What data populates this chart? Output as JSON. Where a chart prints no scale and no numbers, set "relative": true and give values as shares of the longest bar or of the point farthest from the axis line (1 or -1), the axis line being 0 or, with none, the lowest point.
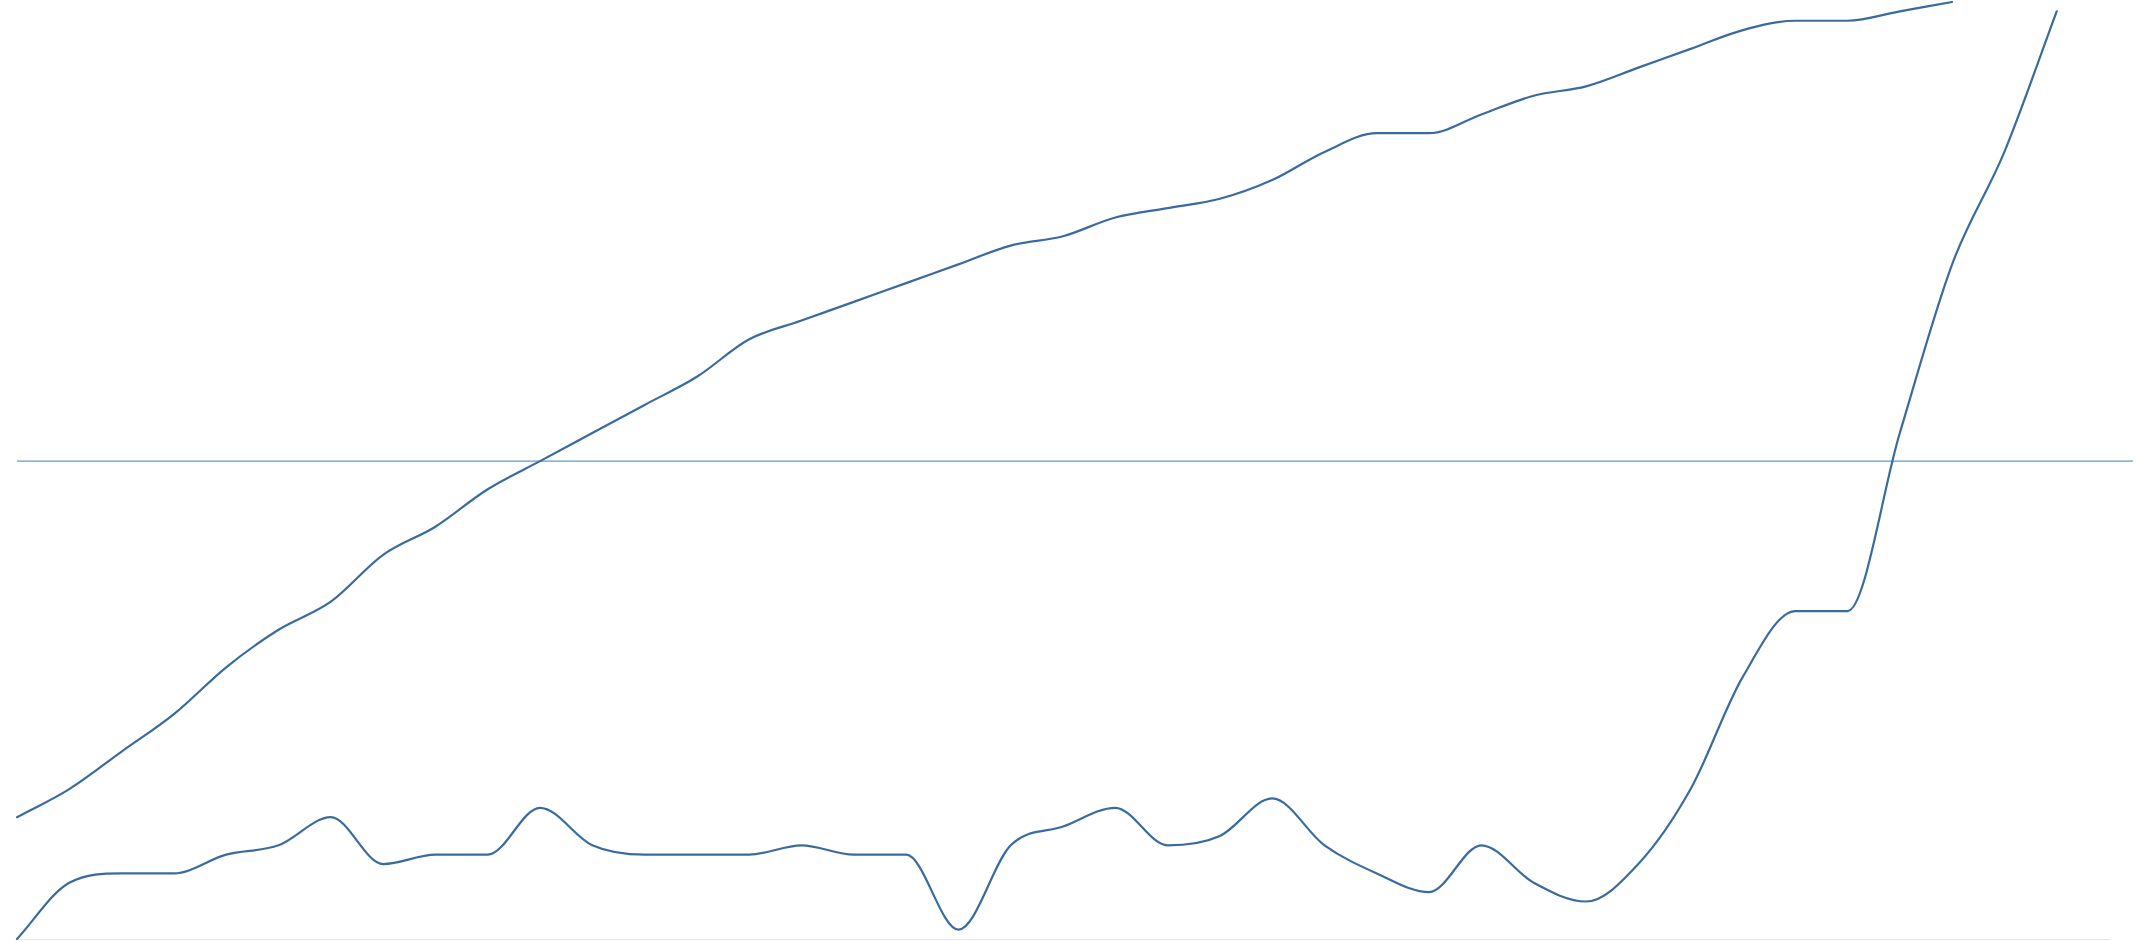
{
  "chart_data": {
    "type": "line",
    "relative": true,
    "grid": false,
    "legend": false,
    "marker": "none",
    "line_style": "solid",
    "categories": [
      null,
      null,
      null,
      null,
      null,
      null,
      null,
      null,
      null,
      null,
      null,
      null,
      null,
      null,
      null,
      null,
      null,
      null,
      null,
      null,
      null,
      null,
      null,
      null,
      null,
      null,
      null,
      null,
      null,
      null,
      null,
      null,
      null,
      null,
      null,
      null,
      null,
      null,
      null,
      null,
      null
    ],
    "series": [
      {
        "color": "#3a6b9e",
        "values": [
          0.13,
          0.16,
          0.2,
          0.24,
          0.29,
          0.33,
          0.36,
          0.41,
          0.44,
          0.48,
          0.51,
          0.54,
          0.57,
          0.6,
          0.64,
          0.66,
          0.68,
          0.7,
          0.72,
          0.74,
          0.75,
          0.77,
          0.78,
          0.79,
          0.81,
          0.84,
          0.86,
          0.86,
          0.88,
          0.9,
          0.91,
          0.93,
          0.95,
          0.97,
          0.98,
          0.98,
          0.99,
          1,
          null,
          null,
          null
        ]
      },
      {
        "color": "#3a6b9e",
        "values": [
          0.0,
          0.06,
          0.07,
          0.07,
          0.09,
          0.1,
          0.13,
          0.08,
          0.09,
          0.09,
          0.14,
          0.1,
          0.09,
          0.09,
          0.09,
          0.1,
          0.09,
          0.09,
          0.01,
          0.1,
          0.12,
          0.14,
          0.1,
          0.11,
          0.15,
          0.1,
          0.07,
          0.05,
          0.1,
          0.06,
          0.04,
          0.08,
          0.16,
          0.28,
          0.35,
          0.35,
          0.54,
          0.72,
          0.84,
          0.99,
          null
        ]
      }
    ],
    "ref_lines": [
      {
        "axis": "y",
        "value": 0.51,
        "color": "#5b9bd5"
      }
    ]
  }
}
